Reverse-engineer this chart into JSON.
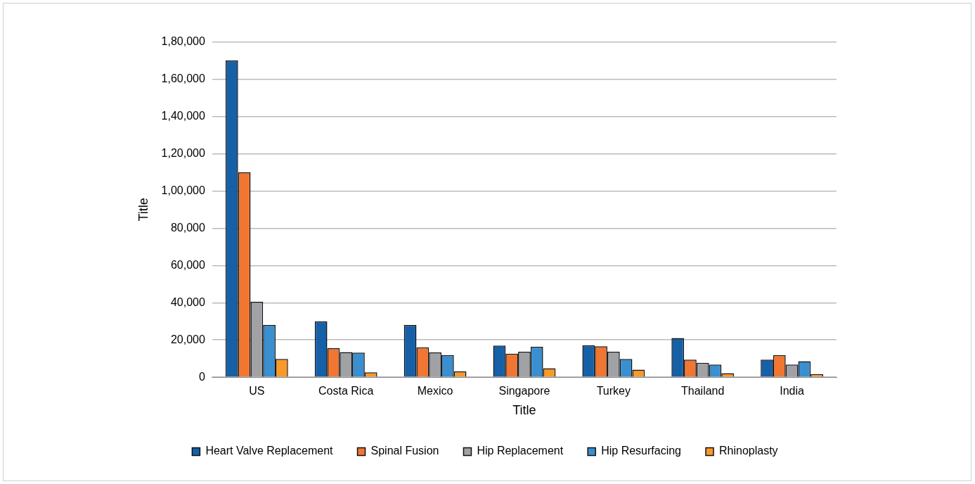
{
  "chart_data": {
    "type": "bar",
    "xlabel": "Title",
    "ylabel": "Title",
    "categories": [
      "US",
      "Costa Rica",
      "Mexico",
      "Singapore",
      "Turkey",
      "Thailand",
      "India"
    ],
    "series": [
      {
        "name": "Heart Valve Replacement",
        "color": "#1660a8",
        "values": [
          170000,
          30000,
          28000,
          17000,
          17200,
          21000,
          9400
        ]
      },
      {
        "name": "Spinal Fusion",
        "color": "#f07632",
        "values": [
          110000,
          15600,
          16000,
          12600,
          16600,
          9400,
          11900
        ]
      },
      {
        "name": "Hip Replacement",
        "color": "#a0a2a6",
        "values": [
          40500,
          13500,
          13300,
          13700,
          13700,
          7700,
          6800
        ]
      },
      {
        "name": "Hip Resurfacing",
        "color": "#3a8fd0",
        "values": [
          28000,
          13200,
          11900,
          16300,
          9800,
          6800,
          8600
        ]
      },
      {
        "name": "Rhinoplasty",
        "color": "#f8992a",
        "values": [
          9800,
          2600,
          3100,
          4800,
          4000,
          2200,
          1700
        ]
      }
    ],
    "ylim": [
      0,
      180000
    ],
    "yticks": [
      0,
      {
        "value": 20000,
        "label": "20,000"
      },
      {
        "value": 40000,
        "label": "40,000"
      },
      {
        "value": 60000,
        "label": "60,000"
      },
      {
        "value": 80000,
        "label": "80,000"
      },
      {
        "value": 100000,
        "label": "1,00,000"
      },
      {
        "value": 120000,
        "label": "1,20,000"
      },
      {
        "value": 140000,
        "label": "1,40,000"
      },
      {
        "value": 160000,
        "label": "1,60,000"
      },
      {
        "value": 180000,
        "label": "1,80,000"
      }
    ],
    "grid": "y",
    "legend": "bottom"
  }
}
